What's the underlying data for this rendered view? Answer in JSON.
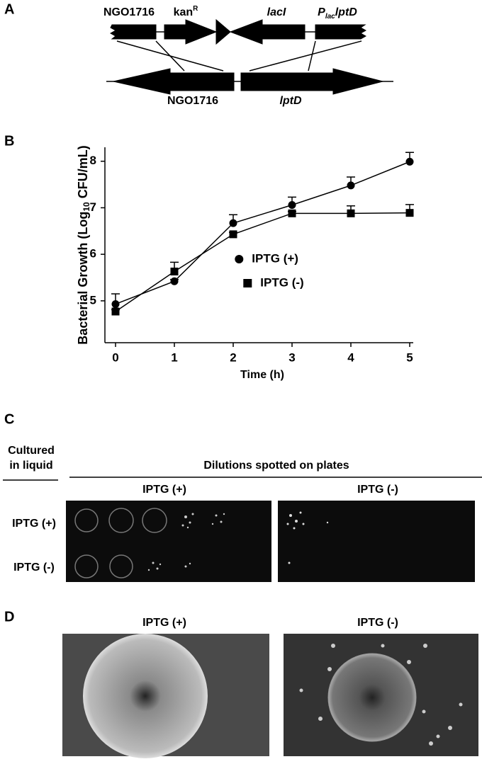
{
  "panel_a": {
    "label": "A",
    "top_left_gene": "NGO1716",
    "kan": "kan",
    "kan_sup": "R",
    "laci": "lacI",
    "plac_p": "P",
    "plac_sub": "lac",
    "plac_gene": "lptD",
    "bottom_left_gene": "NGO1716",
    "bottom_right_gene": "lptD"
  },
  "panel_b": {
    "label": "B"
  },
  "chart_data": {
    "type": "line",
    "xlabel": "Time (h)",
    "ylabel": [
      "Bacterial Growth (Log",
      "10",
      " CFU/mL)"
    ],
    "x": [
      0,
      1,
      2,
      3,
      4,
      5
    ],
    "xlim": [
      0,
      5
    ],
    "xticks": [
      0,
      1,
      2,
      3,
      4,
      5
    ],
    "ylim": [
      4.1,
      8.3
    ],
    "yticks": [
      5,
      6,
      7,
      8
    ],
    "legend": "center right",
    "series": [
      {
        "name": "IPTG (+)",
        "color": "#000000",
        "marker": "circle",
        "values": [
          4.93,
          5.42,
          6.67,
          7.06,
          7.48,
          7.99
        ],
        "errors": [
          0.22,
          0.04,
          0.18,
          0.17,
          0.18,
          0.2
        ]
      },
      {
        "name": "IPTG (-)",
        "color": "#000000",
        "marker": "square",
        "values": [
          4.77,
          5.63,
          6.43,
          6.88,
          6.88,
          6.89
        ],
        "errors": [
          0.04,
          0.2,
          0.04,
          0.04,
          0.16,
          0.18
        ]
      }
    ]
  },
  "panel_c": {
    "label": "C",
    "cultured": [
      "Cultured",
      "in liquid"
    ],
    "dilutions": "Dilutions spotted on plates",
    "plate_left": "IPTG (+)",
    "plate_right": "IPTG (-)",
    "row_top": "IPTG (+)",
    "row_bottom": "IPTG (-)"
  },
  "panel_d": {
    "label": "D",
    "image_left": "IPTG (+)",
    "image_right": "IPTG (-)"
  }
}
